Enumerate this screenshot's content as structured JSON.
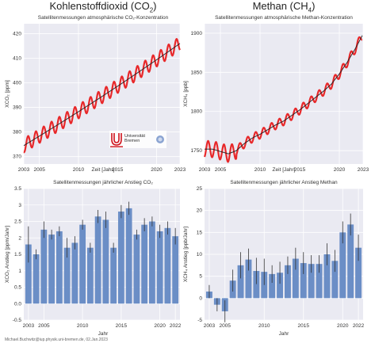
{
  "titles": {
    "co2": "Kohlenstoffdioxid (CO",
    "co2_sub": "2",
    "co2_close": ")",
    "ch4": "Methan (CH",
    "ch4_sub": "4",
    "ch4_close": ")"
  },
  "logo": {
    "name": "Universität Bremen",
    "icon": "university-bremen-logo"
  },
  "credit": "Michael.Buchwitz@iup.physik.uni-bremen.de, 02.Jan.2023",
  "colors": {
    "line_red": "#e8282a",
    "trend_black": "#222222",
    "bar_blue": "#6b8ec6",
    "panel_bg": "#eaeaf2",
    "grid": "#ffffff"
  },
  "chart_data": [
    {
      "id": "co2-concentration",
      "type": "line",
      "title": "Satellitenmessungen atmosphärische CO₂-Konzentration",
      "xlabel": "Zeit [Jahr]",
      "ylabel": "XCO₂ [ppm]",
      "xlim": [
        2003,
        2023
      ],
      "ylim": [
        367,
        424
      ],
      "xticks": [
        2003,
        2005,
        2010,
        2015,
        2020,
        2023
      ],
      "yticks": [
        370,
        380,
        390,
        400,
        410,
        420
      ],
      "series": [
        {
          "kind": "seasonal",
          "start": 374.5,
          "end": 416.0,
          "amplitude": 2.8
        },
        {
          "kind": "trend",
          "x": [
            2003,
            2023
          ],
          "y": [
            374.5,
            416.0
          ]
        }
      ]
    },
    {
      "id": "ch4-concentration",
      "type": "line",
      "title": "Satellitenmessungen atmosphärische Methan-Konzentration",
      "xlabel": "Zeit [Jahr]",
      "ylabel": "XCH₄ [ppb]",
      "xlim": [
        2003,
        2023
      ],
      "ylim": [
        1733,
        1912
      ],
      "xticks": [
        2003,
        2005,
        2010,
        2015,
        2020,
        2023
      ],
      "yticks": [
        1750,
        1800,
        1850,
        1900
      ],
      "series": [
        {
          "kind": "seasonal",
          "amplitude": 8,
          "x": [
            2003,
            2004,
            2005,
            2006,
            2007,
            2008,
            2009,
            2010,
            2011,
            2012,
            2013,
            2014,
            2015,
            2016,
            2017,
            2018,
            2019,
            2020,
            2021,
            2022,
            2022.9
          ],
          "y": [
            1752,
            1752,
            1749,
            1746,
            1750,
            1759,
            1766,
            1771,
            1777,
            1783,
            1788,
            1795,
            1802,
            1810,
            1818,
            1826,
            1835,
            1848,
            1863,
            1880,
            1897
          ]
        },
        {
          "kind": "trend",
          "x": [
            2003,
            2004,
            2005,
            2006,
            2007,
            2008,
            2009,
            2010,
            2011,
            2012,
            2013,
            2014,
            2015,
            2016,
            2017,
            2018,
            2019,
            2020,
            2021,
            2022,
            2022.9
          ],
          "y": [
            1752,
            1752,
            1749,
            1746,
            1750,
            1759,
            1766,
            1771,
            1777,
            1783,
            1788,
            1795,
            1802,
            1810,
            1818,
            1826,
            1835,
            1848,
            1863,
            1880,
            1897
          ]
        }
      ]
    },
    {
      "id": "co2-growth",
      "type": "bar",
      "title": "Satellitenmessungen jährlicher Anstieg CO₂",
      "xlabel": "Jahr",
      "ylabel": "XCO₂ Anstieg [ppm/Jahr]",
      "xlim": [
        2002.4,
        2022.6
      ],
      "ylim": [
        -0.5,
        3.5
      ],
      "xticks": [
        2003,
        2005,
        2010,
        2015,
        2020,
        2022
      ],
      "yticks": [
        -0.5,
        0.0,
        0.5,
        1.0,
        1.5,
        2.0,
        2.5,
        3.0,
        3.5
      ],
      "categories": [
        2003,
        2004,
        2005,
        2006,
        2007,
        2008,
        2009,
        2010,
        2011,
        2012,
        2013,
        2014,
        2015,
        2016,
        2017,
        2018,
        2019,
        2020,
        2021,
        2022
      ],
      "values": [
        1.8,
        1.5,
        2.25,
        2.1,
        2.2,
        1.7,
        1.85,
        2.4,
        1.7,
        2.65,
        2.55,
        1.7,
        2.8,
        2.9,
        2.1,
        2.4,
        2.5,
        2.2,
        2.3,
        2.05
      ],
      "errors": [
        0.55,
        0.15,
        0.25,
        0.15,
        0.15,
        0.3,
        0.2,
        0.15,
        0.15,
        0.2,
        0.25,
        0.15,
        0.2,
        0.2,
        0.15,
        0.2,
        0.15,
        0.2,
        0.2,
        0.25
      ]
    },
    {
      "id": "ch4-growth",
      "type": "bar",
      "title": "Satellitenmessungen jährlicher Anstieg Methan",
      "xlabel": "Jahr",
      "ylabel": "XCH₄ Anstieg [ppb/Jahr]",
      "xlim": [
        2002.4,
        2022.6
      ],
      "ylim": [
        -5,
        25
      ],
      "xticks": [
        2003,
        2005,
        2010,
        2015,
        2020,
        2022
      ],
      "yticks": [
        -5,
        0,
        5,
        10,
        15,
        20,
        25
      ],
      "categories": [
        2003,
        2004,
        2005,
        2006,
        2007,
        2008,
        2009,
        2010,
        2011,
        2012,
        2013,
        2014,
        2015,
        2016,
        2017,
        2018,
        2019,
        2020,
        2021,
        2022
      ],
      "values": [
        1.5,
        -1.5,
        -3.0,
        4.0,
        7.5,
        8.8,
        6.2,
        6.0,
        5.5,
        5.8,
        7.5,
        9.0,
        8.0,
        7.8,
        7.8,
        10.0,
        8.5,
        15.0,
        16.8,
        11.5
      ],
      "errors": [
        1.5,
        1.5,
        2.5,
        2.5,
        3.0,
        2.5,
        3.0,
        3.0,
        2.0,
        2.5,
        2.0,
        2.5,
        2.5,
        2.0,
        2.0,
        2.5,
        2.5,
        2.5,
        2.5,
        3.0
      ]
    }
  ]
}
